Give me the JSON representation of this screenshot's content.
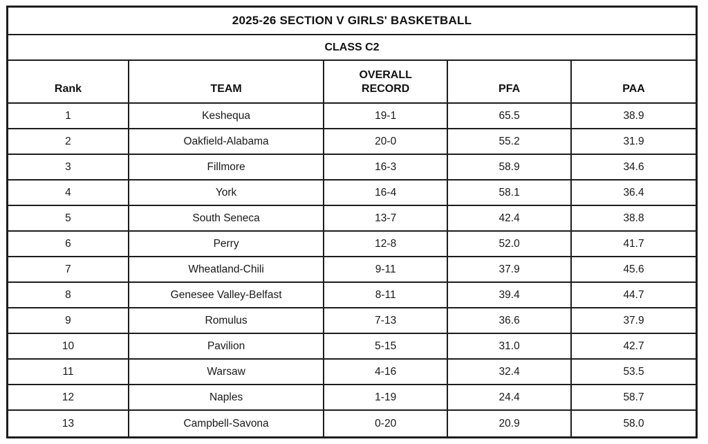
{
  "title": "2025-26 SECTION V GIRLS' BASKETBALL",
  "subtitle": "CLASS C2",
  "colors": {
    "background": "#ffffff",
    "border": "#1c1c1c",
    "text": "#111111"
  },
  "table": {
    "columns": [
      "Rank",
      "TEAM",
      "OVERALL RECORD",
      "PFA",
      "PAA"
    ],
    "rows": [
      {
        "rank": "1",
        "team": "Keshequa",
        "record": "19-1",
        "pfa": "65.5",
        "paa": "38.9"
      },
      {
        "rank": "2",
        "team": "Oakfield-Alabama",
        "record": "20-0",
        "pfa": "55.2",
        "paa": "31.9"
      },
      {
        "rank": "3",
        "team": "Fillmore",
        "record": "16-3",
        "pfa": "58.9",
        "paa": "34.6"
      },
      {
        "rank": "4",
        "team": "York",
        "record": "16-4",
        "pfa": "58.1",
        "paa": "36.4"
      },
      {
        "rank": "5",
        "team": "South Seneca",
        "record": "13-7",
        "pfa": "42.4",
        "paa": "38.8"
      },
      {
        "rank": "6",
        "team": "Perry",
        "record": "12-8",
        "pfa": "52.0",
        "paa": "41.7"
      },
      {
        "rank": "7",
        "team": "Wheatland-Chili",
        "record": "9-11",
        "pfa": "37.9",
        "paa": "45.6"
      },
      {
        "rank": "8",
        "team": "Genesee Valley-Belfast",
        "record": "8-11",
        "pfa": "39.4",
        "paa": "44.7"
      },
      {
        "rank": "9",
        "team": "Romulus",
        "record": "7-13",
        "pfa": "36.6",
        "paa": "37.9"
      },
      {
        "rank": "10",
        "team": "Pavilion",
        "record": "5-15",
        "pfa": "31.0",
        "paa": "42.7"
      },
      {
        "rank": "11",
        "team": "Warsaw",
        "record": "4-16",
        "pfa": "32.4",
        "paa": "53.5"
      },
      {
        "rank": "12",
        "team": "Naples",
        "record": "1-19",
        "pfa": "24.4",
        "paa": "58.7"
      },
      {
        "rank": "13",
        "team": "Campbell-Savona",
        "record": "0-20",
        "pfa": "20.9",
        "paa": "58.0"
      }
    ]
  }
}
